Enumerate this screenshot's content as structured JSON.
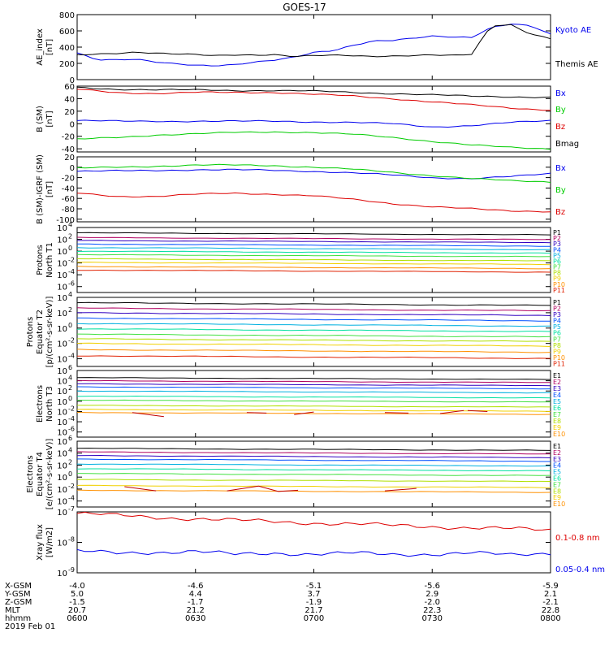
{
  "title": "GOES-17",
  "colors": {
    "black": "#000000",
    "blue": "#0000ee",
    "green": "#00cc00",
    "red": "#dd0000",
    "P": [
      "#000000",
      "#b00060",
      "#3000c0",
      "#0050ff",
      "#00b0e0",
      "#00e0a0",
      "#40e040",
      "#b0e000",
      "#f0d000",
      "#ff9000",
      "#e02000"
    ],
    "E": [
      "#000000",
      "#b00060",
      "#3000c0",
      "#0050ff",
      "#00b0e0",
      "#00e0a0",
      "#40e040",
      "#b0e000",
      "#f0d000",
      "#ff9000",
      "#e02000"
    ]
  },
  "xaxis": {
    "ticks": [
      "0600",
      "0630",
      "0700",
      "0730",
      "0800"
    ],
    "rows": [
      {
        "label": "X-GSM",
        "values": [
          "-4.0",
          "-4.6",
          "-5.1",
          "-5.6",
          "-5.9"
        ]
      },
      {
        "label": "Y-GSM",
        "values": [
          "5.0",
          "4.4",
          "3.7",
          "2.9",
          "2.1"
        ]
      },
      {
        "label": "Z-GSM",
        "values": [
          "-1.5",
          "-1.7",
          "-1.9",
          "-2.0",
          "-2.1"
        ]
      },
      {
        "label": "MLT",
        "values": [
          "20.7",
          "21.2",
          "21.7",
          "22.3",
          "22.8"
        ]
      },
      {
        "label": "hhmm",
        "values": [
          "0600",
          "0630",
          "0700",
          "0730",
          "0800"
        ]
      }
    ],
    "date": "2019 Feb 01"
  },
  "chart_data": [
    {
      "type": "line",
      "ylabel": "AE_index",
      "yunit": "[nT]",
      "ylim": [
        0,
        800
      ],
      "yticks": [
        "0",
        "200",
        "400",
        "600",
        "800"
      ],
      "x": [
        0,
        5,
        10,
        15,
        20,
        25,
        30,
        35,
        40,
        45,
        50,
        55,
        60,
        65,
        70,
        75,
        80,
        85,
        90,
        95,
        100,
        105,
        110,
        115,
        120
      ],
      "series": [
        {
          "name": "Kyoto AE",
          "color": "blue",
          "values": [
            330,
            240,
            240,
            250,
            220,
            200,
            180,
            170,
            180,
            210,
            240,
            280,
            340,
            360,
            420,
            470,
            480,
            510,
            540,
            530,
            520,
            640,
            680,
            660,
            560
          ]
        },
        {
          "name": "Themis AE",
          "color": "black",
          "values": [
            300,
            310,
            320,
            340,
            330,
            320,
            310,
            290,
            300,
            300,
            310,
            290,
            300,
            300,
            290,
            280,
            290,
            300,
            310,
            300,
            310,
            660,
            670,
            560,
            510
          ]
        }
      ]
    },
    {
      "type": "line",
      "ylabel": "B (SM)",
      "yunit": "[nT]",
      "ylim": [
        -45,
        60
      ],
      "yticks": [
        "60",
        "40",
        "20",
        "0",
        "-20",
        "-40"
      ],
      "x": [
        0,
        10,
        20,
        30,
        40,
        50,
        60,
        70,
        80,
        90,
        100,
        110,
        120
      ],
      "series": [
        {
          "name": "Bx",
          "color": "blue",
          "values": [
            5,
            4,
            4,
            4,
            4,
            4,
            3,
            2,
            0,
            -5,
            -3,
            2,
            5
          ]
        },
        {
          "name": "By",
          "color": "green",
          "values": [
            -25,
            -22,
            -18,
            -16,
            -14,
            -13,
            -14,
            -17,
            -22,
            -28,
            -34,
            -38,
            -40
          ]
        },
        {
          "name": "Bz",
          "color": "red",
          "values": [
            55,
            50,
            48,
            50,
            50,
            50,
            47,
            44,
            40,
            35,
            30,
            25,
            22
          ]
        },
        {
          "name": "Bmag",
          "color": "black",
          "values": [
            58,
            55,
            54,
            54,
            53,
            53,
            52,
            50,
            48,
            46,
            44,
            43,
            42
          ]
        }
      ]
    },
    {
      "type": "line",
      "ylabel": "B (SM)-IGRF (SM)",
      "yunit": "[nT]",
      "ylim": [
        -105,
        20
      ],
      "yticks": [
        "20",
        "0",
        "-20",
        "-40",
        "-60",
        "-80",
        "-100"
      ],
      "x": [
        0,
        10,
        20,
        30,
        40,
        50,
        60,
        70,
        80,
        90,
        100,
        110,
        120
      ],
      "series": [
        {
          "name": "Bx",
          "color": "blue",
          "values": [
            -8,
            -7,
            -6,
            -5,
            -5,
            -6,
            -8,
            -11,
            -15,
            -20,
            -22,
            -18,
            -12
          ]
        },
        {
          "name": "By",
          "color": "green",
          "values": [
            -2,
            0,
            2,
            4,
            4,
            3,
            0,
            -4,
            -10,
            -16,
            -22,
            -26,
            -28
          ]
        },
        {
          "name": "Bz",
          "color": "red",
          "values": [
            -50,
            -56,
            -56,
            -52,
            -50,
            -52,
            -55,
            -62,
            -70,
            -76,
            -80,
            -84,
            -85
          ]
        }
      ]
    },
    {
      "type": "line",
      "ylabel": "Protons",
      "ylabel2": "North T1",
      "log": true,
      "ylim": [
        -7,
        4
      ],
      "ytickexp": [
        4,
        2,
        0,
        -2,
        -4,
        -6
      ],
      "legend": [
        "P1",
        "P2",
        "P3",
        "P4",
        "P5",
        "P6",
        "P7",
        "P8",
        "P9",
        "P10",
        "P11"
      ],
      "levels": [
        3.1,
        2.3,
        1.8,
        1.2,
        0.6,
        0.0,
        -0.6,
        -1.3,
        -1.9,
        -2.6,
        -3.2
      ]
    },
    {
      "type": "line",
      "ylabel": "Protons",
      "ylabel2": "Equator T2",
      "yunit": "[p/(cm²-s-sr-keV)]",
      "log": true,
      "ylim": [
        -5,
        4
      ],
      "ytickexp": [
        4,
        2,
        0,
        -2,
        -4
      ],
      "legend": [
        "P1",
        "P2",
        "P3",
        "P4",
        "P5",
        "P6",
        "P7",
        "P8",
        "P9",
        "P10",
        "P11"
      ],
      "levels": [
        3.3,
        2.6,
        2.0,
        1.3,
        0.6,
        -0.1,
        -0.8,
        -1.4,
        -2.0,
        -2.8,
        -3.6
      ]
    },
    {
      "type": "line",
      "ylabel": "Electrons",
      "ylabel2": "North T3",
      "log": true,
      "ylim": [
        -7,
        6
      ],
      "ytickexp": [
        6,
        4,
        2,
        0,
        -2,
        -4,
        -6
      ],
      "legend": [
        "E1",
        "E2",
        "E3",
        "E4",
        "E5",
        "E6",
        "E7",
        "E8",
        "E9",
        "E10"
      ],
      "levels": [
        4.6,
        4.0,
        3.4,
        2.8,
        2.0,
        1.0,
        0.2,
        -0.8,
        -1.6,
        -2.2
      ]
    },
    {
      "type": "line",
      "ylabel": "Electrons",
      "ylabel2": "Equator T4",
      "yunit": "[e/(cm²-s-sr-keV)]",
      "log": true,
      "ylim": [
        -5,
        6
      ],
      "ytickexp": [
        6,
        4,
        2,
        0,
        -2,
        -4
      ],
      "legend": [
        "E1",
        "E2",
        "E3",
        "E4",
        "E5",
        "E6",
        "E7",
        "E8",
        "E9",
        "E10"
      ],
      "levels": [
        4.8,
        4.2,
        3.6,
        3.0,
        2.2,
        1.4,
        0.6,
        -0.4,
        -1.4,
        -2.2
      ]
    },
    {
      "type": "line",
      "ylabel": "Xray flux",
      "yunit": "[W/m2]",
      "log": true,
      "ylim": [
        -9,
        -7
      ],
      "ytickexp": [
        -7,
        -8,
        -9
      ],
      "series": [
        {
          "name": "0.1-0.8 nm",
          "color": "red",
          "values": [
            -7.05,
            -7.12,
            -7.18,
            -7.22,
            -7.28,
            -7.32,
            -7.36,
            -7.4,
            -7.45,
            -7.48,
            -7.52,
            -7.56,
            -7.6
          ]
        },
        {
          "name": "0.05-0.4 nm",
          "color": "blue",
          "values": [
            -8.3,
            -8.35,
            -8.32,
            -8.3,
            -8.4,
            -8.35,
            -8.38,
            -8.36,
            -8.4,
            -8.38,
            -8.35,
            -8.42,
            -8.35
          ]
        }
      ]
    }
  ]
}
